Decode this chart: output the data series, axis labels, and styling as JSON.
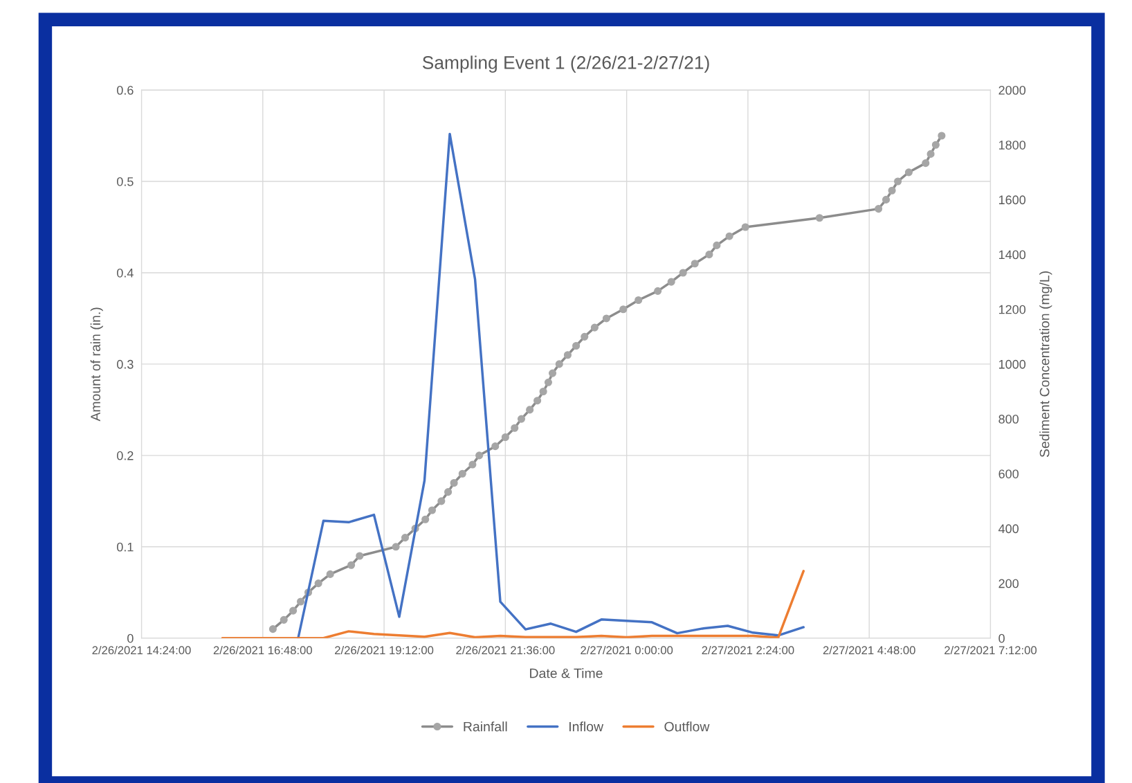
{
  "chart_data": {
    "type": "line",
    "title": "Sampling Event 1 (2/26/21-2/27/21)",
    "xlabel": "Date & Time",
    "ylabel": "Amount of rain (in.)",
    "y2label": "Sediment Concentration (mg/L)",
    "xlim": [
      "2021-02-26T14:24",
      "2021-02-27T07:12"
    ],
    "xticks": [
      {
        "value": "2021-02-26T14:24",
        "label": "2/26/2021 14:24:00"
      },
      {
        "value": "2021-02-26T16:48",
        "label": "2/26/2021 16:48:00"
      },
      {
        "value": "2021-02-26T19:12",
        "label": "2/26/2021 19:12:00"
      },
      {
        "value": "2021-02-26T21:36",
        "label": "2/26/2021 21:36:00"
      },
      {
        "value": "2021-02-27T00:00",
        "label": "2/27/2021 0:00:00"
      },
      {
        "value": "2021-02-27T02:24",
        "label": "2/27/2021 2:24:00"
      },
      {
        "value": "2021-02-27T04:48",
        "label": "2/27/2021 4:48:00"
      },
      {
        "value": "2021-02-27T07:12",
        "label": "2/27/2021 7:12:00"
      }
    ],
    "ylim": [
      0,
      0.6
    ],
    "yticks": [
      0,
      0.1,
      0.2,
      0.3,
      0.4,
      0.5,
      0.6
    ],
    "y2lim": [
      0,
      2000
    ],
    "y2ticks": [
      0,
      200,
      400,
      600,
      800,
      1000,
      1200,
      1400,
      1600,
      1800,
      2000
    ],
    "grid": true,
    "legend": "bottom",
    "series": [
      {
        "name": "Rainfall",
        "color": "#8c8c8c",
        "marker": "circle",
        "x": [
          "2021-02-26T17:00",
          "2021-02-26T17:13",
          "2021-02-26T17:24",
          "2021-02-26T17:33",
          "2021-02-26T17:42",
          "2021-02-26T17:54",
          "2021-02-26T18:08",
          "2021-02-26T18:33",
          "2021-02-26T18:43",
          "2021-02-26T19:26",
          "2021-02-26T19:37",
          "2021-02-26T19:49",
          "2021-02-26T20:01",
          "2021-02-26T20:09",
          "2021-02-26T20:20",
          "2021-02-26T20:28",
          "2021-02-26T20:35",
          "2021-02-26T20:45",
          "2021-02-26T20:57",
          "2021-02-26T21:05",
          "2021-02-26T21:24",
          "2021-02-26T21:36",
          "2021-02-26T21:47",
          "2021-02-26T21:55",
          "2021-02-26T22:05",
          "2021-02-26T22:14",
          "2021-02-26T22:21",
          "2021-02-26T22:27",
          "2021-02-26T22:32",
          "2021-02-26T22:40",
          "2021-02-26T22:50",
          "2021-02-26T23:00",
          "2021-02-26T23:10",
          "2021-02-26T23:22",
          "2021-02-26T23:36",
          "2021-02-26T23:56",
          "2021-02-27T00:14",
          "2021-02-27T00:37",
          "2021-02-27T00:53",
          "2021-02-27T01:07",
          "2021-02-27T01:21",
          "2021-02-27T01:38",
          "2021-02-27T01:47",
          "2021-02-27T02:02",
          "2021-02-27T02:21",
          "2021-02-27T03:49",
          "2021-02-27T04:59",
          "2021-02-27T05:08",
          "2021-02-27T05:15",
          "2021-02-27T05:22",
          "2021-02-27T05:35",
          "2021-02-27T05:55",
          "2021-02-27T06:01",
          "2021-02-27T06:07",
          "2021-02-27T06:14"
        ],
        "values": [
          0.01,
          0.02,
          0.03,
          0.04,
          0.05,
          0.06,
          0.07,
          0.08,
          0.09,
          0.1,
          0.11,
          0.12,
          0.13,
          0.14,
          0.15,
          0.16,
          0.17,
          0.18,
          0.19,
          0.2,
          0.21,
          0.22,
          0.23,
          0.24,
          0.25,
          0.26,
          0.27,
          0.28,
          0.29,
          0.3,
          0.31,
          0.32,
          0.33,
          0.34,
          0.35,
          0.36,
          0.37,
          0.38,
          0.39,
          0.4,
          0.41,
          0.42,
          0.43,
          0.44,
          0.45,
          0.46,
          0.47,
          0.48,
          0.49,
          0.5,
          0.51,
          0.52,
          0.53,
          0.54,
          0.55
        ]
      },
      {
        "name": "Inflow",
        "color": "#4472c4",
        "axis": "y2",
        "x": [
          "2021-02-26T17:30",
          "2021-02-26T18:00",
          "2021-02-26T18:30",
          "2021-02-26T19:00",
          "2021-02-26T19:30",
          "2021-02-26T20:00",
          "2021-02-26T20:30",
          "2021-02-26T21:00",
          "2021-02-26T21:30",
          "2021-02-26T22:00",
          "2021-02-26T22:30",
          "2021-02-26T23:00",
          "2021-02-26T23:30",
          "2021-02-27T00:00",
          "2021-02-27T00:30",
          "2021-02-27T01:00",
          "2021-02-27T01:30",
          "2021-02-27T02:00",
          "2021-02-27T02:30",
          "2021-02-27T03:00",
          "2021-02-27T03:30"
        ],
        "values": [
          0,
          428,
          423,
          450,
          78,
          575,
          1840,
          1310,
          133,
          32,
          53,
          23,
          68,
          63,
          58,
          18,
          35,
          45,
          20,
          10,
          40
        ]
      },
      {
        "name": "Outflow",
        "color": "#ed7d31",
        "axis": "y2",
        "x": [
          "2021-02-26T16:00",
          "2021-02-26T16:30",
          "2021-02-26T17:00",
          "2021-02-26T17:30",
          "2021-02-26T18:00",
          "2021-02-26T18:30",
          "2021-02-26T19:00",
          "2021-02-26T19:30",
          "2021-02-26T20:00",
          "2021-02-26T20:30",
          "2021-02-26T21:00",
          "2021-02-26T21:30",
          "2021-02-26T22:00",
          "2021-02-26T22:30",
          "2021-02-26T23:00",
          "2021-02-26T23:30",
          "2021-02-27T00:00",
          "2021-02-27T00:30",
          "2021-02-27T01:00",
          "2021-02-27T01:30",
          "2021-02-27T02:00",
          "2021-02-27T02:30",
          "2021-02-27T03:00",
          "2021-02-27T03:30"
        ],
        "values": [
          0,
          0,
          0,
          0,
          0,
          25,
          15,
          10,
          5,
          19,
          3,
          8,
          4,
          4,
          4,
          8,
          3,
          8,
          8,
          8,
          8,
          8,
          2,
          245
        ]
      }
    ]
  }
}
